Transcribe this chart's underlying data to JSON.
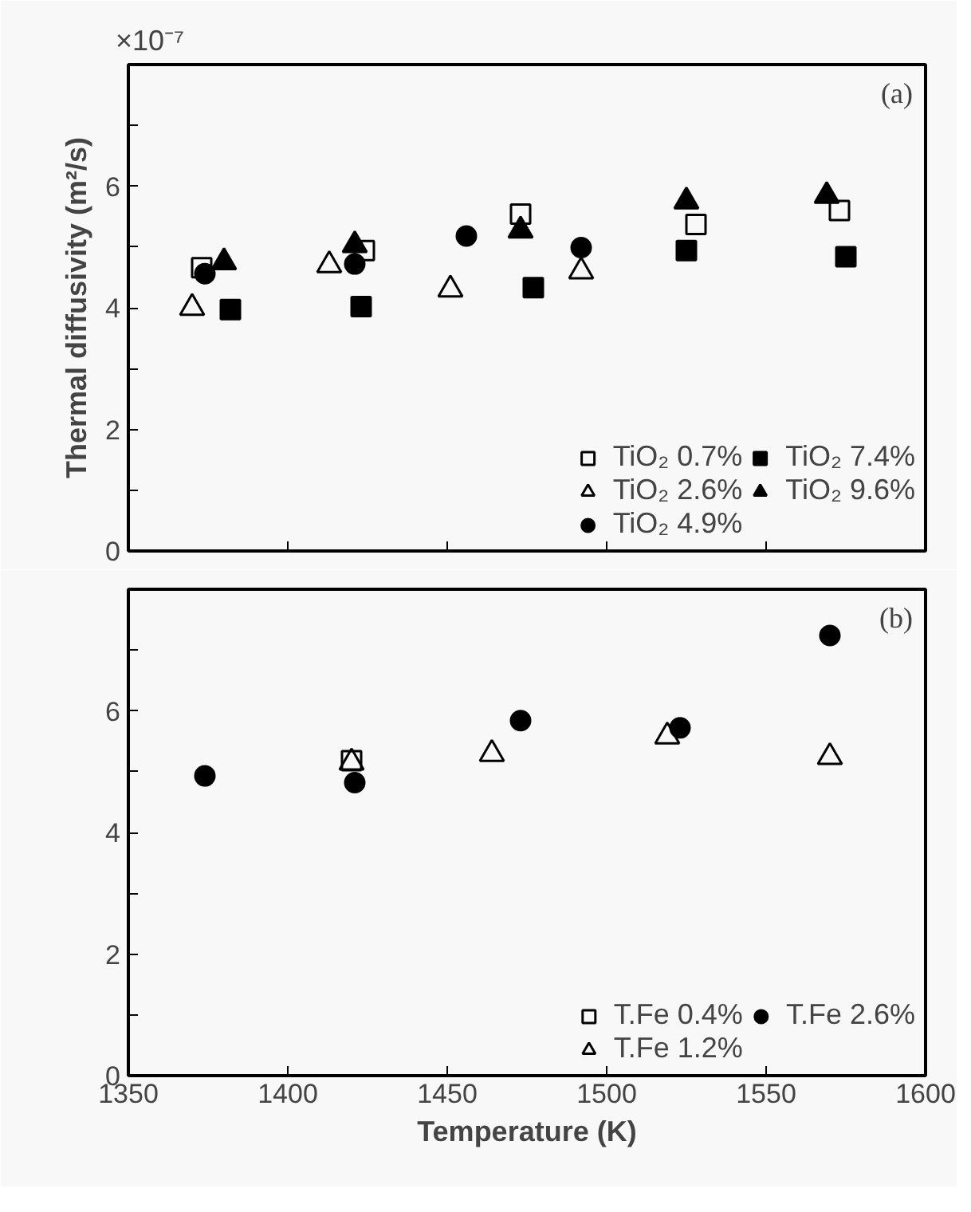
{
  "chart_data": [
    {
      "type": "scatter",
      "ylabel": "Thermal diffusivity (m²/s)",
      "annotations": [
        "×10⁻⁷",
        "(a)"
      ],
      "xlim": [
        1350,
        1600
      ],
      "ylim": [
        0,
        8
      ],
      "xticks": [
        1350,
        1400,
        1450,
        1500,
        1550,
        1600
      ],
      "yticks": [
        0,
        {
          "value": 1,
          "label": null
        },
        2,
        {
          "value": 3,
          "label": null
        },
        4,
        {
          "value": 5,
          "label": null
        },
        6,
        {
          "value": 7,
          "label": null
        }
      ],
      "tick_labels": "y",
      "legend": "bottom right",
      "grid": false,
      "series": [
        {
          "name": "TiO₂ 0.7%",
          "color": "#000000",
          "marker": "square-open",
          "x": [
            1373,
            1424,
            1473,
            1528,
            1573
          ],
          "values": [
            4.66,
            4.94,
            5.54,
            5.37,
            5.6
          ]
        },
        {
          "name": "TiO₂ 2.6%",
          "color": "#000000",
          "marker": "triangle-open",
          "x": [
            1370,
            1413,
            1451,
            1492
          ],
          "values": [
            4.0,
            4.7,
            4.3,
            4.6
          ]
        },
        {
          "name": "TiO₂ 4.9%",
          "color": "#000000",
          "marker": "circle",
          "x": [
            1374,
            1421,
            1456,
            1492
          ],
          "values": [
            4.56,
            4.72,
            5.18,
            4.99
          ]
        },
        {
          "name": "TiO₂ 7.4%",
          "color": "#000000",
          "marker": "square",
          "x": [
            1382,
            1423,
            1477,
            1525,
            1575
          ],
          "values": [
            3.97,
            4.02,
            4.33,
            4.94,
            4.84
          ]
        },
        {
          "name": "TiO₂ 9.6%",
          "color": "#000000",
          "marker": "triangle",
          "x": [
            1380,
            1421,
            1473,
            1525,
            1569
          ],
          "values": [
            4.75,
            5.03,
            5.27,
            5.75,
            5.84
          ]
        }
      ]
    },
    {
      "type": "scatter",
      "xlabel": "Temperature (K)",
      "annotations": [
        "(b)"
      ],
      "xlim": [
        1350,
        1600
      ],
      "ylim": [
        0,
        8
      ],
      "xticks": [
        1350,
        1400,
        1450,
        1500,
        1550,
        1600
      ],
      "yticks": [
        0,
        {
          "value": 1,
          "label": null
        },
        2,
        {
          "value": 3,
          "label": null
        },
        4,
        {
          "value": 5,
          "label": null
        },
        6,
        {
          "value": 7,
          "label": null
        }
      ],
      "legend": "bottom right",
      "grid": false,
      "series": [
        {
          "name": "T.Fe 0.4%",
          "color": "#000000",
          "marker": "square-open",
          "x": [
            1420
          ],
          "values": [
            5.18
          ]
        },
        {
          "name": "T.Fe 1.2%",
          "color": "#000000",
          "marker": "triangle-open",
          "x": [
            1420,
            1464,
            1519,
            1570
          ],
          "values": [
            5.15,
            5.29,
            5.58,
            5.24
          ]
        },
        {
          "name": "T.Fe 2.6%",
          "color": "#000000",
          "marker": "circle",
          "x": [
            1374,
            1421,
            1473,
            1523,
            1570
          ],
          "values": [
            4.93,
            4.82,
            5.84,
            5.72,
            7.24
          ]
        }
      ]
    }
  ]
}
